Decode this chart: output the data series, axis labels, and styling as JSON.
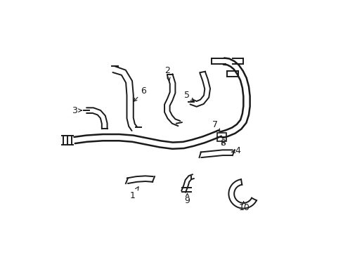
{
  "bg_color": "#ffffff",
  "line_color": "#1a1a1a",
  "lw_main": 1.8,
  "lw_part": 1.4,
  "fig_width": 4.89,
  "fig_height": 3.6,
  "dpi": 100
}
